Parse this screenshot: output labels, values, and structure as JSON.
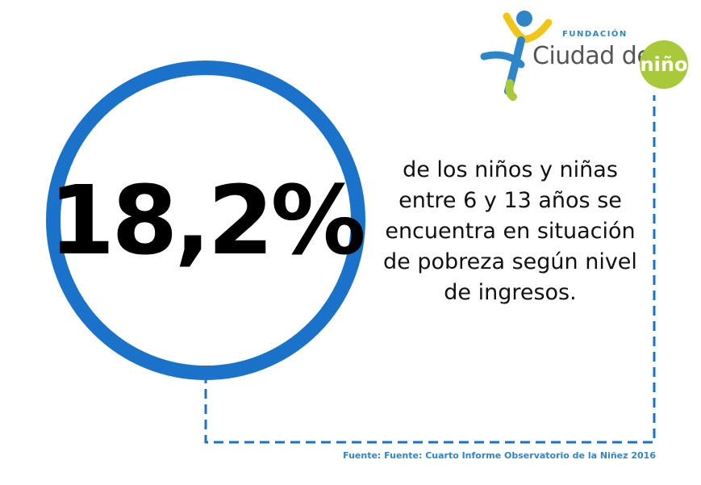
{
  "stat": {
    "value": "18,2%"
  },
  "description": {
    "lines": [
      "de los niños y niñas",
      "entre 6 y 13 años se",
      "encuentra en situación",
      "de pobreza según nivel",
      "de ingresos."
    ]
  },
  "logo": {
    "small_text": "FUNDACIÓN",
    "main_text": "Ciudad del",
    "badge_text": "niño"
  },
  "source": "Fuente: Fuente: Cuarto Informe Observatorio de la Niñez 2016",
  "colors": {
    "ring": "#1a73c8",
    "accent_blue": "#2e86c9",
    "logo_green": "#a8c93a",
    "logo_yellow": "#f2c619"
  }
}
